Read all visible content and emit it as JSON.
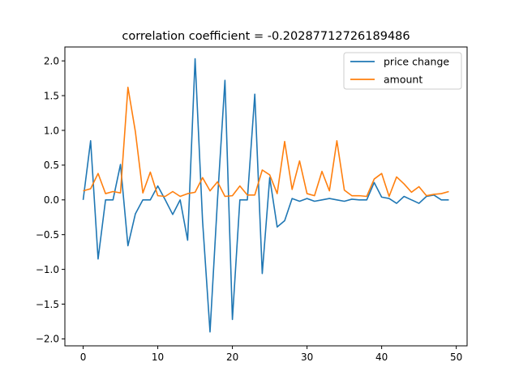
{
  "chart_data": {
    "type": "line",
    "title": "correlation coefficient = -0.20287712726189486",
    "xlabel": "",
    "ylabel": "",
    "xlim": [
      -2.45,
      51.45
    ],
    "ylim": [
      -2.1,
      2.2
    ],
    "xticks": [
      0,
      10,
      20,
      30,
      40,
      50
    ],
    "yticks": [
      -2.0,
      -1.5,
      -1.0,
      -0.5,
      0.0,
      0.5,
      1.0,
      1.5,
      2.0
    ],
    "xtick_labels": [
      "0",
      "10",
      "20",
      "30",
      "40",
      "50"
    ],
    "ytick_labels": [
      "−2.0",
      "−1.5",
      "−1.0",
      "−0.5",
      "0.0",
      "0.5",
      "1.0",
      "1.5",
      "2.0"
    ],
    "grid": false,
    "legend_position": "top-right",
    "x": [
      0,
      1,
      2,
      3,
      4,
      5,
      6,
      7,
      8,
      9,
      10,
      11,
      12,
      13,
      14,
      15,
      16,
      17,
      18,
      19,
      20,
      21,
      22,
      23,
      24,
      25,
      26,
      27,
      28,
      29,
      30,
      31,
      32,
      33,
      34,
      35,
      36,
      37,
      38,
      39,
      40,
      41,
      42,
      43,
      44,
      45,
      46,
      47,
      48,
      49
    ],
    "series": [
      {
        "name": "price change",
        "color": "#1f77b4",
        "values": [
          0.0,
          0.85,
          -0.85,
          0.0,
          0.0,
          0.51,
          -0.66,
          -0.2,
          0.0,
          0.0,
          0.2,
          0.0,
          -0.21,
          0.0,
          -0.58,
          2.03,
          -0.3,
          -1.9,
          0.0,
          1.72,
          -1.72,
          0.0,
          0.0,
          1.52,
          -1.06,
          0.32,
          -0.39,
          -0.3,
          0.02,
          -0.02,
          0.02,
          -0.02,
          0.0,
          0.02,
          0.0,
          -0.02,
          0.01,
          0.0,
          0.0,
          0.25,
          0.04,
          0.02,
          -0.05,
          0.05,
          0.0,
          -0.05,
          0.05,
          0.07,
          0.0,
          0.0
        ]
      },
      {
        "name": "amount",
        "color": "#ff7f0e",
        "values": [
          0.13,
          0.16,
          0.38,
          0.09,
          0.12,
          0.1,
          1.62,
          0.98,
          0.1,
          0.4,
          0.06,
          0.05,
          0.12,
          0.05,
          0.09,
          0.11,
          0.32,
          0.13,
          0.26,
          0.05,
          0.06,
          0.2,
          0.07,
          0.07,
          0.43,
          0.36,
          0.09,
          0.84,
          0.15,
          0.56,
          0.09,
          0.06,
          0.41,
          0.13,
          0.85,
          0.14,
          0.06,
          0.06,
          0.05,
          0.3,
          0.38,
          0.05,
          0.33,
          0.23,
          0.11,
          0.19,
          0.06,
          0.08,
          0.09,
          0.12
        ]
      }
    ]
  }
}
